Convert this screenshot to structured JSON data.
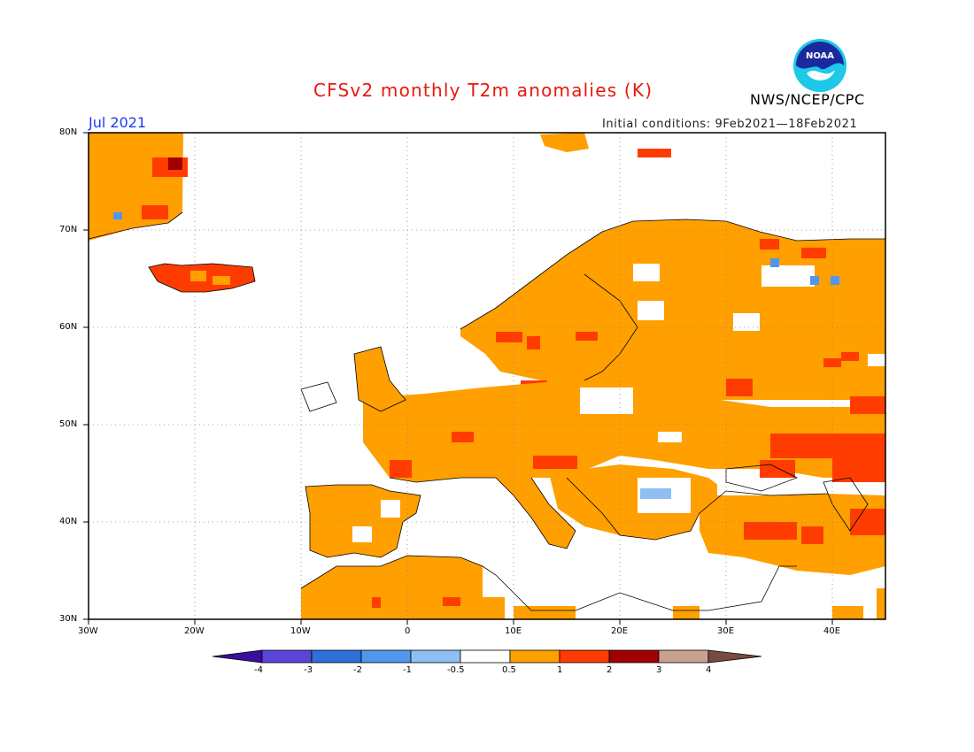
{
  "header": {
    "title": "CFSv2 monthly T2m anomalies (K)",
    "organization": "NWS/NCEP/CPC",
    "logo_text": "NOAA",
    "month": "Jul 2021",
    "initial_conditions": "Initial conditions: 9Feb2021—18Feb2021"
  },
  "map": {
    "region": {
      "lon_min": -30,
      "lon_max": 45,
      "lat_min": 30,
      "lat_max": 80
    },
    "lat_ticks": [
      {
        "value": 80,
        "label": "80N"
      },
      {
        "value": 70,
        "label": "70N"
      },
      {
        "value": 60,
        "label": "60N"
      },
      {
        "value": 50,
        "label": "50N"
      },
      {
        "value": 40,
        "label": "40N"
      },
      {
        "value": 30,
        "label": "30N"
      }
    ],
    "lon_ticks": [
      {
        "value": -30,
        "label": "30W"
      },
      {
        "value": -20,
        "label": "20W"
      },
      {
        "value": -10,
        "label": "10W"
      },
      {
        "value": 0,
        "label": "0"
      },
      {
        "value": 10,
        "label": "10E"
      },
      {
        "value": 20,
        "label": "20E"
      },
      {
        "value": 30,
        "label": "30E"
      },
      {
        "value": 40,
        "label": "40E"
      }
    ],
    "grid": "dotted",
    "anomaly_regions": [
      {
        "name": "greenland",
        "category": "0.5 to 1",
        "lon": [
          -30,
          -21
        ],
        "lat": [
          70,
          80
        ]
      },
      {
        "name": "iceland",
        "category": "1 to 2",
        "lon": [
          -24,
          -14
        ],
        "lat": [
          63.5,
          66.5
        ]
      },
      {
        "name": "scandinavia-russia",
        "category": "0.5 to 1",
        "lon": [
          5,
          45
        ],
        "lat": [
          55,
          71
        ]
      },
      {
        "name": "central-europe",
        "category": "0.5 to 1",
        "lon": [
          -2,
          30
        ],
        "lat": [
          45,
          55
        ]
      },
      {
        "name": "iberia",
        "category": "0.5 to 1",
        "lon": [
          -9.5,
          3
        ],
        "lat": [
          36,
          43.5
        ]
      },
      {
        "name": "north-africa",
        "category": "0.5 to 1",
        "lon": [
          -15,
          12
        ],
        "lat": [
          30,
          36
        ]
      },
      {
        "name": "black-sea-caspian",
        "category": "1 to 2",
        "lon": [
          33,
          45
        ],
        "lat": [
          43,
          48
        ]
      },
      {
        "name": "turkey",
        "category": "1 to 2",
        "lon": [
          30,
          45
        ],
        "lat": [
          36,
          40
        ]
      },
      {
        "name": "balkans-romania",
        "category": "-1 to -0.5",
        "lon": [
          22,
          25
        ],
        "lat": [
          42,
          43
        ]
      }
    ]
  },
  "colorbar": {
    "ticks": [
      "-4",
      "-3",
      "-2",
      "-1",
      "-0.5",
      "0.5",
      "1",
      "2",
      "3",
      "4"
    ],
    "colors": [
      "#3a0e9e",
      "#5a45d6",
      "#2f6fd8",
      "#4f97ec",
      "#8fbef4",
      "#ffffff",
      "#ff9f00",
      "#ff3c00",
      "#a00000",
      "#c9a08f",
      "#7a4a40"
    ]
  }
}
